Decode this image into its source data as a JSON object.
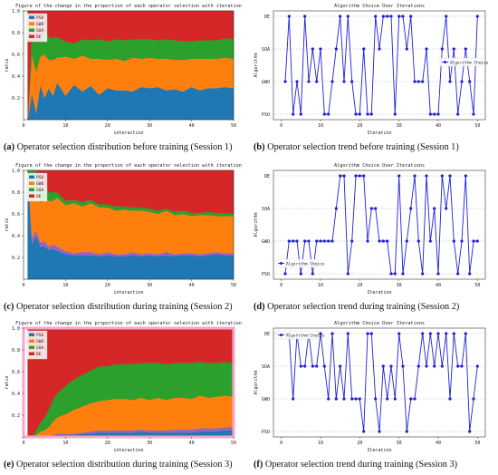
{
  "figure": {
    "panels": [
      {
        "letter": "(a)",
        "caption": "Operator selection distribution before training (Session 1)"
      },
      {
        "letter": "(b)",
        "caption": "Operator selection trend before training (Session 1)"
      },
      {
        "letter": "(c)",
        "caption": "Operator selection distribution during training (Session 2)"
      },
      {
        "letter": "(d)",
        "caption": "Operator selection trend during training (Session 2)"
      },
      {
        "letter": "(e)",
        "caption": "Operator selection distribution during training (Session 3)"
      },
      {
        "letter": "(f)",
        "caption": "Operator selection trend during training (Session 3)"
      }
    ]
  },
  "colors": {
    "PSO": "#1f77b4",
    "GWO": "#ff7f0e",
    "SOA": "#2ca02c",
    "DE": "#d62728",
    "SHO": "#9467bd",
    "line": "#1f1fd6",
    "rim": "#f2a6c8"
  },
  "chart_data": [
    {
      "type": "area",
      "title": "Figure of the change in the proportion of each operator selection with iteration",
      "xlabel": "interaction",
      "ylabel": "ratio",
      "xlim": [
        0,
        50
      ],
      "ylim": [
        0,
        1.0
      ],
      "xticks": [
        0,
        10,
        20,
        30,
        40,
        50
      ],
      "yticks": [
        0.2,
        0.4,
        0.6,
        0.8,
        1.0
      ],
      "legend": [
        "PSO",
        "GWO",
        "SOA",
        "DE"
      ],
      "legend_position": "top-left",
      "x": [
        1,
        2,
        3,
        4,
        5,
        6,
        7,
        8,
        10,
        12,
        14,
        16,
        18,
        20,
        22,
        24,
        26,
        28,
        30,
        32,
        34,
        36,
        38,
        40,
        42,
        44,
        46,
        48,
        50
      ],
      "series": [
        {
          "name": "PSO",
          "values": [
            0.0,
            0.24,
            0.06,
            0.32,
            0.2,
            0.29,
            0.22,
            0.34,
            0.22,
            0.32,
            0.26,
            0.31,
            0.23,
            0.29,
            0.27,
            0.27,
            0.26,
            0.3,
            0.29,
            0.3,
            0.27,
            0.28,
            0.26,
            0.3,
            0.27,
            0.29,
            0.29,
            0.3,
            0.29
          ]
        },
        {
          "name": "GWO",
          "values": [
            0.0,
            0.36,
            0.38,
            0.26,
            0.4,
            0.26,
            0.33,
            0.23,
            0.36,
            0.24,
            0.33,
            0.25,
            0.33,
            0.26,
            0.29,
            0.27,
            0.31,
            0.26,
            0.28,
            0.26,
            0.29,
            0.27,
            0.29,
            0.26,
            0.29,
            0.27,
            0.27,
            0.27,
            0.27
          ]
        },
        {
          "name": "SOA",
          "values": [
            0.0,
            0.24,
            0.27,
            0.14,
            0.22,
            0.21,
            0.2,
            0.19,
            0.14,
            0.14,
            0.15,
            0.17,
            0.18,
            0.17,
            0.18,
            0.19,
            0.17,
            0.18,
            0.17,
            0.17,
            0.18,
            0.18,
            0.17,
            0.16,
            0.17,
            0.17,
            0.17,
            0.18,
            0.18
          ]
        },
        {
          "name": "DE",
          "values": [
            1.0,
            0.16,
            0.29,
            0.28,
            0.18,
            0.24,
            0.25,
            0.24,
            0.28,
            0.3,
            0.26,
            0.27,
            0.26,
            0.28,
            0.26,
            0.27,
            0.26,
            0.26,
            0.26,
            0.27,
            0.26,
            0.27,
            0.28,
            0.28,
            0.27,
            0.27,
            0.27,
            0.25,
            0.26
          ]
        }
      ]
    },
    {
      "type": "line",
      "title": "Algorithm Choice Over Iterations",
      "xlabel": "Iteration",
      "ylabel": "Algorithm",
      "xlim": [
        -2,
        52
      ],
      "xticks": [
        0,
        10,
        20,
        30,
        40,
        50
      ],
      "categories": [
        "PSO",
        "GWO",
        "SOA",
        "DE"
      ],
      "legend": [
        "Algorithm Choice"
      ],
      "legend_position": "center-right",
      "x": [
        1,
        2,
        3,
        4,
        5,
        6,
        7,
        8,
        9,
        10,
        11,
        12,
        13,
        14,
        15,
        16,
        17,
        18,
        19,
        20,
        21,
        22,
        23,
        24,
        25,
        26,
        27,
        28,
        29,
        30,
        31,
        32,
        33,
        34,
        35,
        36,
        37,
        38,
        39,
        40,
        41,
        42,
        43,
        44,
        45,
        46,
        47,
        48,
        49,
        50
      ],
      "series": [
        {
          "name": "Algorithm Choice",
          "values": [
            "GWO",
            "DE",
            "PSO",
            "GWO",
            "PSO",
            "DE",
            "GWO",
            "SOA",
            "GWO",
            "SOA",
            "PSO",
            "PSO",
            "GWO",
            "SOA",
            "DE",
            "GWO",
            "DE",
            "GWO",
            "PSO",
            "PSO",
            "SOA",
            "PSO",
            "PSO",
            "DE",
            "SOA",
            "DE",
            "DE",
            "DE",
            "PSO",
            "DE",
            "DE",
            "SOA",
            "DE",
            "GWO",
            "GWO",
            "GWO",
            "SOA",
            "PSO",
            "PSO",
            "PSO",
            "SOA",
            "DE",
            "GWO",
            "SOA",
            "PSO",
            "GWO",
            "SOA",
            "GWO",
            "PSO",
            "DE"
          ]
        }
      ]
    },
    {
      "type": "area",
      "title": "Figure of the change in the proportion of each operator selection with iteration",
      "xlabel": "interaction",
      "ylabel": "ratio",
      "xlim": [
        0,
        50
      ],
      "ylim": [
        0,
        1.0
      ],
      "xticks": [
        0,
        10,
        20,
        30,
        40,
        50
      ],
      "yticks": [
        0.2,
        0.4,
        0.6,
        0.8,
        1.0
      ],
      "legend": [
        "PSO",
        "GWO",
        "SOA",
        "DE"
      ],
      "legend_position": "top-left",
      "x": [
        1,
        2,
        3,
        4,
        5,
        6,
        7,
        8,
        10,
        12,
        14,
        16,
        18,
        20,
        22,
        24,
        26,
        28,
        30,
        32,
        34,
        36,
        38,
        40,
        42,
        44,
        46,
        48,
        50
      ],
      "series": [
        {
          "name": "PSO",
          "values": [
            1.0,
            0.32,
            0.4,
            0.3,
            0.3,
            0.27,
            0.28,
            0.26,
            0.23,
            0.22,
            0.22,
            0.22,
            0.21,
            0.22,
            0.21,
            0.21,
            0.22,
            0.21,
            0.22,
            0.21,
            0.22,
            0.21,
            0.22,
            0.22,
            0.21,
            0.22,
            0.23,
            0.22,
            0.22
          ]
        },
        {
          "name": "SHO",
          "values": [
            0.0,
            0.06,
            0.05,
            0.04,
            0.05,
            0.03,
            0.04,
            0.04,
            0.03,
            0.02,
            0.03,
            0.03,
            0.02,
            0.03,
            0.02,
            0.02,
            0.03,
            0.02,
            0.02,
            0.02,
            0.03,
            0.02,
            0.02,
            0.02,
            0.02,
            0.02,
            0.02,
            0.02,
            0.02
          ]
        },
        {
          "name": "GWO",
          "values": [
            0.0,
            0.34,
            0.4,
            0.36,
            0.4,
            0.42,
            0.4,
            0.45,
            0.42,
            0.46,
            0.42,
            0.45,
            0.43,
            0.41,
            0.4,
            0.41,
            0.38,
            0.4,
            0.38,
            0.37,
            0.38,
            0.36,
            0.36,
            0.34,
            0.36,
            0.35,
            0.33,
            0.34,
            0.34
          ]
        },
        {
          "name": "SOA",
          "values": [
            0.0,
            0.28,
            0.15,
            0.1,
            0.12,
            0.08,
            0.08,
            0.05,
            0.04,
            0.03,
            0.04,
            0.03,
            0.03,
            0.03,
            0.04,
            0.03,
            0.03,
            0.03,
            0.03,
            0.03,
            0.02,
            0.03,
            0.03,
            0.03,
            0.02,
            0.03,
            0.03,
            0.03,
            0.02
          ]
        },
        {
          "name": "DE",
          "values": [
            0.0,
            0.0,
            0.0,
            0.2,
            0.13,
            0.2,
            0.2,
            0.2,
            0.28,
            0.27,
            0.29,
            0.27,
            0.31,
            0.31,
            0.33,
            0.33,
            0.34,
            0.34,
            0.35,
            0.37,
            0.35,
            0.38,
            0.37,
            0.39,
            0.39,
            0.38,
            0.39,
            0.39,
            0.4
          ]
        }
      ]
    },
    {
      "type": "line",
      "title": "Algorithm Choice Over Iterations",
      "xlabel": "Iteration",
      "ylabel": "Algorithm",
      "xlim": [
        -2,
        52
      ],
      "xticks": [
        0,
        10,
        20,
        30,
        40,
        50
      ],
      "categories": [
        "PSO",
        "GWO",
        "SOA",
        "DE"
      ],
      "legend": [
        "Algorithm Choice"
      ],
      "legend_position": "lower-left",
      "x": [
        1,
        2,
        3,
        4,
        5,
        6,
        7,
        8,
        9,
        10,
        11,
        12,
        13,
        14,
        15,
        16,
        17,
        18,
        19,
        20,
        21,
        22,
        23,
        24,
        25,
        26,
        27,
        28,
        29,
        30,
        31,
        32,
        33,
        34,
        35,
        36,
        37,
        38,
        39,
        40,
        41,
        42,
        43,
        44,
        45,
        46,
        47,
        48,
        49,
        50
      ],
      "series": [
        {
          "name": "Algorithm Choice",
          "values": [
            "PSO",
            "GWO",
            "GWO",
            "GWO",
            "PSO",
            "GWO",
            "GWO",
            "PSO",
            "GWO",
            "GWO",
            "GWO",
            "GWO",
            "GWO",
            "SOA",
            "DE",
            "DE",
            "PSO",
            "GWO",
            "DE",
            "DE",
            "DE",
            "GWO",
            "SOA",
            "SOA",
            "GWO",
            "GWO",
            "GWO",
            "PSO",
            "PSO",
            "DE",
            "PSO",
            "GWO",
            "SOA",
            "DE",
            "GWO",
            "PSO",
            "DE",
            "GWO",
            "SOA",
            "PSO",
            "DE",
            "SOA",
            "DE",
            "GWO",
            "PSO",
            "GWO",
            "DE",
            "PSO",
            "GWO",
            "GWO"
          ]
        }
      ]
    },
    {
      "type": "area",
      "title": "Figure of the change in the proportion of each operator selection with iteration",
      "xlabel": "interaction",
      "ylabel": "ratio",
      "xlim": [
        0,
        50
      ],
      "ylim": [
        0,
        1.0
      ],
      "xticks": [
        0,
        10,
        20,
        30,
        40,
        50
      ],
      "yticks": [
        0.2,
        0.4,
        0.6,
        0.8,
        1.0
      ],
      "legend": [
        "PSO",
        "GWO",
        "SOA",
        "DE"
      ],
      "legend_position": "top-left",
      "x": [
        1,
        2,
        3,
        4,
        5,
        6,
        7,
        8,
        10,
        12,
        14,
        16,
        18,
        20,
        22,
        24,
        26,
        28,
        30,
        32,
        34,
        36,
        38,
        40,
        42,
        44,
        46,
        48,
        50
      ],
      "series": [
        {
          "name": "PSO",
          "values": [
            0.0,
            0.0,
            0.0,
            0.0,
            0.01,
            0.01,
            0.01,
            0.02,
            0.02,
            0.02,
            0.03,
            0.03,
            0.04,
            0.04,
            0.04,
            0.04,
            0.04,
            0.05,
            0.04,
            0.04,
            0.04,
            0.04,
            0.04,
            0.04,
            0.05,
            0.05,
            0.05,
            0.06,
            0.06
          ]
        },
        {
          "name": "SHO",
          "values": [
            0.0,
            0.0,
            0.0,
            0.0,
            0.0,
            0.0,
            0.01,
            0.01,
            0.01,
            0.01,
            0.01,
            0.02,
            0.02,
            0.02,
            0.02,
            0.02,
            0.02,
            0.02,
            0.02,
            0.02,
            0.02,
            0.03,
            0.03,
            0.03,
            0.03,
            0.03,
            0.03,
            0.03,
            0.03
          ]
        },
        {
          "name": "GWO",
          "values": [
            0.0,
            0.0,
            0.02,
            0.05,
            0.05,
            0.08,
            0.12,
            0.15,
            0.18,
            0.22,
            0.24,
            0.26,
            0.27,
            0.28,
            0.29,
            0.29,
            0.28,
            0.29,
            0.28,
            0.3,
            0.28,
            0.29,
            0.29,
            0.28,
            0.3,
            0.28,
            0.29,
            0.29,
            0.28
          ]
        },
        {
          "name": "SOA",
          "values": [
            0.0,
            0.0,
            0.04,
            0.08,
            0.12,
            0.16,
            0.2,
            0.22,
            0.26,
            0.28,
            0.29,
            0.3,
            0.32,
            0.31,
            0.32,
            0.32,
            0.33,
            0.32,
            0.34,
            0.32,
            0.33,
            0.32,
            0.32,
            0.33,
            0.31,
            0.32,
            0.31,
            0.31,
            0.31
          ]
        },
        {
          "name": "DE",
          "values": [
            1.0,
            1.0,
            0.94,
            0.87,
            0.82,
            0.75,
            0.66,
            0.6,
            0.53,
            0.47,
            0.43,
            0.39,
            0.35,
            0.35,
            0.33,
            0.33,
            0.33,
            0.32,
            0.32,
            0.32,
            0.33,
            0.32,
            0.32,
            0.32,
            0.31,
            0.32,
            0.32,
            0.31,
            0.32
          ]
        }
      ]
    },
    {
      "type": "line",
      "title": "Algorithm Choice Over Iterations",
      "xlabel": "Iteration",
      "ylabel": "Algorithm",
      "xlim": [
        -2,
        52
      ],
      "xticks": [
        0,
        10,
        20,
        30,
        40,
        50
      ],
      "categories": [
        "PSO",
        "GWO",
        "SOA",
        "DE"
      ],
      "legend": [
        "Algorithm Choice"
      ],
      "legend_position": "top-left",
      "x": [
        1,
        2,
        3,
        4,
        5,
        6,
        7,
        8,
        9,
        10,
        11,
        12,
        13,
        14,
        15,
        16,
        17,
        18,
        19,
        20,
        21,
        22,
        23,
        24,
        25,
        26,
        27,
        28,
        29,
        30,
        31,
        32,
        33,
        34,
        35,
        36,
        37,
        38,
        39,
        40,
        41,
        42,
        43,
        44,
        45,
        46,
        47,
        48,
        49,
        50
      ],
      "series": [
        {
          "name": "Algorithm Choice",
          "values": [
            "DE",
            "DE",
            "GWO",
            "DE",
            "SOA",
            "SOA",
            "DE",
            "SOA",
            "SOA",
            "DE",
            "SOA",
            "GWO",
            "DE",
            "GWO",
            "SOA",
            "GWO",
            "DE",
            "GWO",
            "GWO",
            "GWO",
            "PSO",
            "DE",
            "DE",
            "GWO",
            "PSO",
            "SOA",
            "GWO",
            "SOA",
            "GWO",
            "DE",
            "SOA",
            "PSO",
            "GWO",
            "GWO",
            "SOA",
            "DE",
            "SOA",
            "DE",
            "SOA",
            "DE",
            "SOA",
            "DE",
            "GWO",
            "DE",
            "SOA",
            "SOA",
            "DE",
            "PSO",
            "GWO",
            "SOA"
          ]
        }
      ]
    }
  ]
}
